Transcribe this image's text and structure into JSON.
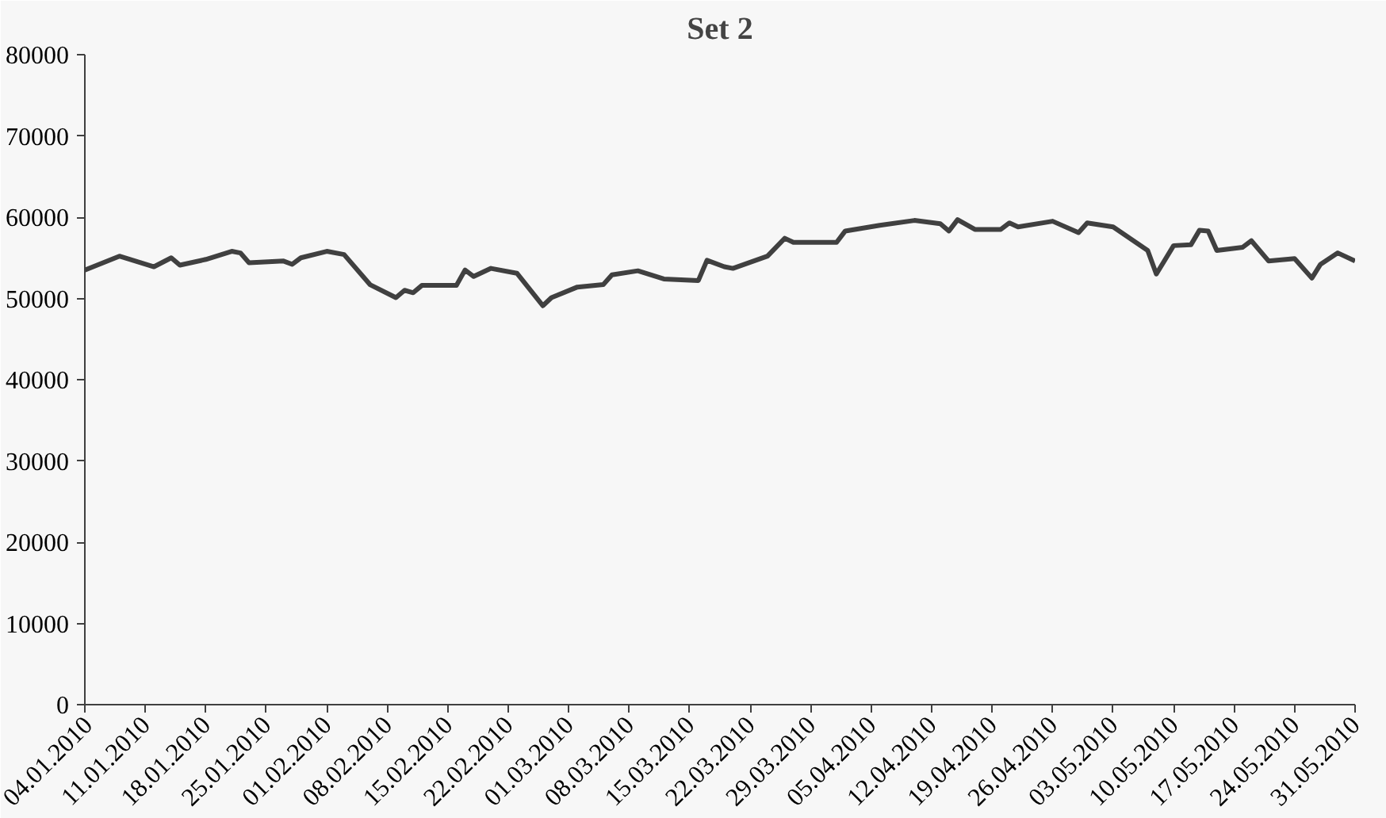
{
  "chart_data": {
    "type": "line",
    "title": "Set 2",
    "x": [
      "2010-01-04",
      "2010-01-08",
      "2010-01-12",
      "2010-01-14",
      "2010-01-15",
      "2010-01-18",
      "2010-01-21",
      "2010-01-22",
      "2010-01-23",
      "2010-01-27",
      "2010-01-28",
      "2010-01-29",
      "2010-02-01",
      "2010-02-03",
      "2010-02-06",
      "2010-02-09",
      "2010-02-10",
      "2010-02-11",
      "2010-02-12",
      "2010-02-16",
      "2010-02-17",
      "2010-02-18",
      "2010-02-20",
      "2010-02-23",
      "2010-02-26",
      "2010-02-27",
      "2010-03-02",
      "2010-03-05",
      "2010-03-06",
      "2010-03-09",
      "2010-03-12",
      "2010-03-16",
      "2010-03-17",
      "2010-03-19",
      "2010-03-20",
      "2010-03-24",
      "2010-03-26",
      "2010-03-27",
      "2010-04-01",
      "2010-04-02",
      "2010-04-06",
      "2010-04-10",
      "2010-04-13",
      "2010-04-14",
      "2010-04-15",
      "2010-04-17",
      "2010-04-20",
      "2010-04-21",
      "2010-04-22",
      "2010-04-26",
      "2010-04-29",
      "2010-04-30",
      "2010-05-03",
      "2010-05-07",
      "2010-05-08",
      "2010-05-10",
      "2010-05-12",
      "2010-05-13",
      "2010-05-14",
      "2010-05-15",
      "2010-05-18",
      "2010-05-19",
      "2010-05-21",
      "2010-05-24",
      "2010-05-26",
      "2010-05-27",
      "2010-05-29",
      "2010-05-31"
    ],
    "series": [
      {
        "color": "#404040",
        "values": [
          53500,
          55200,
          53900,
          55000,
          54100,
          54800,
          55800,
          55600,
          54400,
          54600,
          54200,
          55000,
          55800,
          55400,
          51700,
          50100,
          51000,
          50700,
          51600,
          51600,
          53500,
          52700,
          53700,
          53100,
          49100,
          50100,
          51400,
          51700,
          52900,
          53400,
          52400,
          52200,
          54700,
          53900,
          53700,
          55200,
          57400,
          56900,
          56900,
          58300,
          59000,
          59600,
          59200,
          58300,
          59700,
          58500,
          58500,
          59300,
          58800,
          59500,
          58100,
          59300,
          58800,
          55900,
          53000,
          56500,
          56600,
          58400,
          58300,
          55900,
          56300,
          57100,
          54600,
          54900,
          52500,
          54200,
          55600,
          54600
        ]
      }
    ],
    "xlim": [
      "2010-01-04",
      "2010-05-31"
    ],
    "xticks": [
      {
        "value": "2010-01-04",
        "label": "04.01.2010"
      },
      {
        "value": "2010-01-11",
        "label": "11.01.2010"
      },
      {
        "value": "2010-01-18",
        "label": "18.01.2010"
      },
      {
        "value": "2010-01-25",
        "label": "25.01.2010"
      },
      {
        "value": "2010-02-01",
        "label": "01.02.2010"
      },
      {
        "value": "2010-02-08",
        "label": "08.02.2010"
      },
      {
        "value": "2010-02-15",
        "label": "15.02.2010"
      },
      {
        "value": "2010-02-22",
        "label": "22.02.2010"
      },
      {
        "value": "2010-03-01",
        "label": "01.03.2010"
      },
      {
        "value": "2010-03-08",
        "label": "08.03.2010"
      },
      {
        "value": "2010-03-15",
        "label": "15.03.2010"
      },
      {
        "value": "2010-03-22",
        "label": "22.03.2010"
      },
      {
        "value": "2010-03-29",
        "label": "29.03.2010"
      },
      {
        "value": "2010-04-05",
        "label": "05.04.2010"
      },
      {
        "value": "2010-04-12",
        "label": "12.04.2010"
      },
      {
        "value": "2010-04-19",
        "label": "19.04.2010"
      },
      {
        "value": "2010-04-26",
        "label": "26.04.2010"
      },
      {
        "value": "2010-05-03",
        "label": "03.05.2010"
      },
      {
        "value": "2010-05-10",
        "label": "10.05.2010"
      },
      {
        "value": "2010-05-17",
        "label": "17.05.2010"
      },
      {
        "value": "2010-05-24",
        "label": "24.05.2010"
      },
      {
        "value": "2010-05-31",
        "label": "31.05.2010"
      }
    ],
    "ylim": [
      0,
      80000
    ],
    "yticks": [
      0,
      10000,
      20000,
      30000,
      40000,
      50000,
      60000,
      70000,
      80000
    ],
    "grid": false,
    "marker": "none",
    "line_style": "solid"
  }
}
